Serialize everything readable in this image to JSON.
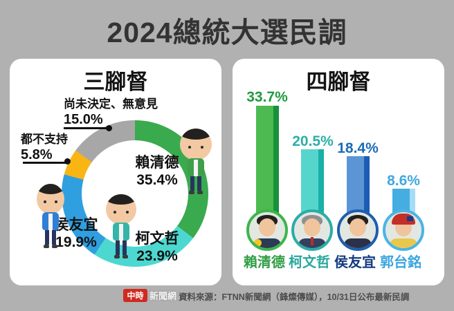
{
  "title": "2024總統大選民調",
  "colors": {
    "background": "#b1b1b1",
    "panel": "#ffffff",
    "title_text": "#333333",
    "label_text": "#111111",
    "logo_red": "#cf2a20",
    "source_text": "#4d4d4d"
  },
  "left_panel": {
    "title": "三腳督",
    "chart_data": {
      "type": "pie",
      "subtype": "donut",
      "start_angle_deg": 0,
      "direction": "clockwise",
      "segments": [
        {
          "label": "賴清德",
          "value": 35.4,
          "display": "35.4%",
          "color": "#3aaa4e"
        },
        {
          "label": "柯文哲",
          "value": 23.9,
          "display": "23.9%",
          "color": "#4cd8d0"
        },
        {
          "label": "侯友宜",
          "value": 19.9,
          "display": "19.9%",
          "color": "#2f9fe0"
        },
        {
          "label": "都不支持",
          "value": 5.8,
          "display": "5.8%",
          "color": "#f9b514"
        },
        {
          "label": "尚未決定、無意見",
          "value": 15.0,
          "display": "15.0%",
          "color": "#a7a7a7"
        }
      ]
    }
  },
  "right_panel": {
    "title": "四腳督",
    "chart_data": {
      "type": "bar",
      "categories": [
        "賴清德",
        "柯文哲",
        "侯友宜",
        "郭台銘"
      ],
      "values": [
        33.7,
        20.5,
        18.4,
        8.6
      ],
      "value_labels": [
        "33.7%",
        "20.5%",
        "18.4%",
        "8.6%"
      ],
      "bar_colors": [
        "#4cba51",
        "#56d5cd",
        "#5b95d6",
        "#46ade2"
      ],
      "bar_edge_colors": [
        "#17913d",
        "#19b0a8",
        "#1c5cb4",
        "#a6dcf5"
      ],
      "label_colors": [
        "#1f9a3e",
        "#2bb0a6",
        "#1b6cb8",
        "#41a8e0"
      ],
      "name_colors": [
        "#2f9e44",
        "#29a79e",
        "#123a80",
        "#3ba5de"
      ],
      "ring_colors": [
        "#3cb54a",
        "#2aada4",
        "#1d5fae",
        "#49b4e6"
      ],
      "ylim": [
        0,
        35
      ],
      "grid": false,
      "legend": false
    }
  },
  "footer": {
    "logo_box": "中時",
    "logo_text": "新聞網",
    "source": "資料來源：FTNN新聞網（鋒燦傳媒），10/31日公布最新民調"
  }
}
